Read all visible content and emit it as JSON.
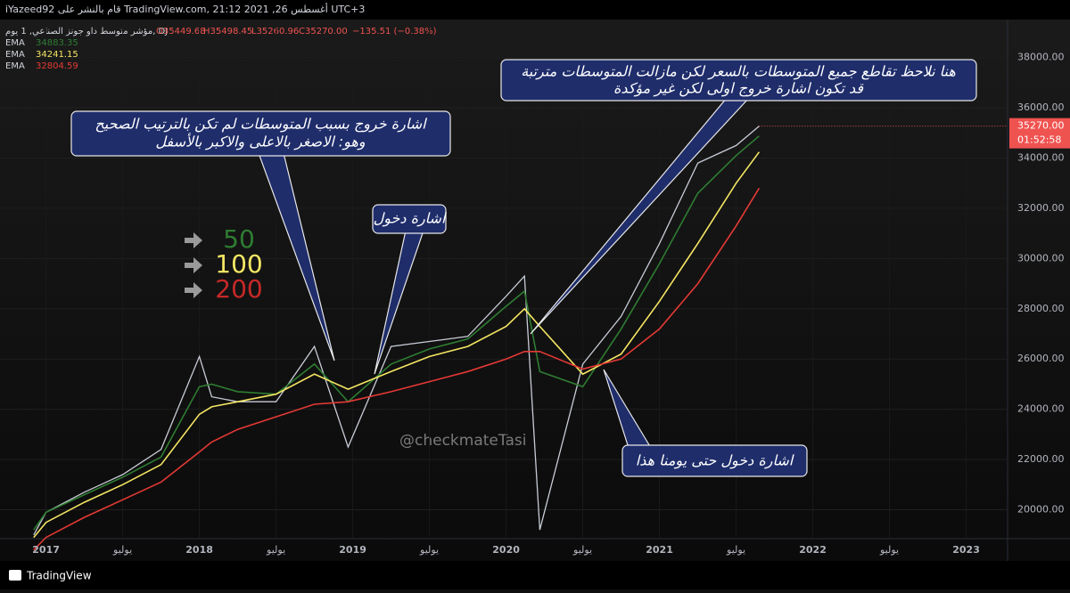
{
  "header": {
    "publisher": "iYazeed92 قام بالنشر على TradingView.com, 21:12 2021 ,26 أغسطس UTC+3",
    "symbol": "مؤشر متوسط داو جونز الصناعي, 1 يوم, DJ",
    "ohlc": [
      "O35449.68",
      "H35498.45",
      "L35260.96",
      "C35270.00",
      "−135.51 (−0.38%)"
    ]
  },
  "chart_data": {
    "type": "line",
    "x": [
      2016.92,
      2017.0,
      2017.25,
      2017.5,
      2017.75,
      2018.0,
      2018.08,
      2018.25,
      2018.5,
      2018.75,
      2018.97,
      2019.25,
      2019.5,
      2019.75,
      2020.0,
      2020.12,
      2020.22,
      2020.5,
      2020.75,
      2021.0,
      2021.25,
      2021.5,
      2021.65
    ],
    "series": [
      {
        "name": "DJ",
        "color": "#c8ccd6",
        "values": [
          19000,
          19900,
          20700,
          21400,
          22400,
          26100,
          24500,
          24300,
          24300,
          26500,
          22500,
          26500,
          26700,
          26900,
          28500,
          29300,
          19200,
          25800,
          27700,
          30600,
          33800,
          34500,
          35270
        ]
      },
      {
        "name": "EMA",
        "color": "#2e7d32",
        "legend_value": "34883.35",
        "values": [
          19200,
          19900,
          20600,
          21300,
          22100,
          24900,
          25000,
          24700,
          24600,
          25800,
          24300,
          25800,
          26400,
          26800,
          28100,
          28700,
          25500,
          24900,
          27200,
          29800,
          32600,
          34100,
          34880
        ]
      },
      {
        "name": "EMA",
        "color": "#f5e663",
        "legend_value": "34241.15",
        "values": [
          18900,
          19500,
          20300,
          21000,
          21800,
          23800,
          24100,
          24300,
          24600,
          25400,
          24800,
          25500,
          26100,
          26500,
          27300,
          28000,
          27300,
          25400,
          26200,
          28300,
          30600,
          33000,
          34240
        ]
      },
      {
        "name": "EMA",
        "color": "#e53935",
        "legend_value": "32804.59",
        "values": [
          18400,
          18900,
          19700,
          20400,
          21100,
          22300,
          22700,
          23200,
          23700,
          24200,
          24300,
          24700,
          25100,
          25500,
          26000,
          26300,
          26300,
          25600,
          26000,
          27200,
          29000,
          31300,
          32800
        ]
      }
    ],
    "xlim": [
      2016.7,
      2023.27
    ],
    "xticks": [
      2017,
      {
        "value": 2017.5,
        "label": "يوليو"
      },
      2018,
      {
        "value": 2018.5,
        "label": "يوليو"
      },
      2019,
      {
        "value": 2019.5,
        "label": "يوليو"
      },
      2020,
      {
        "value": 2020.5,
        "label": "يوليو"
      },
      2021,
      {
        "value": 2021.5,
        "label": "يوليو"
      },
      2022,
      {
        "value": 2022.5,
        "label": "يوليو"
      },
      2023
    ],
    "ylim": [
      18850,
      39510
    ],
    "yticks": [
      {
        "value": 20000,
        "label": "20000.00"
      },
      {
        "value": 22000,
        "label": "22000.00"
      },
      {
        "value": 24000,
        "label": "24000.00"
      },
      {
        "value": 26000,
        "label": "26000.00"
      },
      {
        "value": 28000,
        "label": "28000.00"
      },
      {
        "value": 30000,
        "label": "30000.00"
      },
      {
        "value": 32000,
        "label": "32000.00"
      },
      {
        "value": 34000,
        "label": "34000.00"
      },
      {
        "value": 36000,
        "label": "36000.00"
      },
      {
        "value": 38000,
        "label": "38000.00"
      }
    ],
    "grid": true,
    "last_price": {
      "value": 35270,
      "label": "35270.00"
    },
    "countdown": "01:52:58",
    "ema_key": [
      {
        "label": "50",
        "color": "#2e7d32"
      },
      {
        "label": "100",
        "color": "#f5e663"
      },
      {
        "label": "200",
        "color": "#c62828"
      }
    ]
  },
  "annotations": [
    {
      "lines": [
        "اشارة خروج بسبب المتوسطات لم تكن بالترتيب الصحيح",
        "وهو: الاصغر بالاعلى والاكبر بالأسفل"
      ]
    },
    {
      "lines": [
        "اشارة دخول"
      ]
    },
    {
      "lines": [
        "هنا نلاحظ تقاطع جميع المتوسطات بالسعر لكن مازالت المتوسطات مترتبة",
        "قد تكون اشارة خروج اولى لكن غير مؤكدة"
      ]
    },
    {
      "lines": [
        "اشارة دخول حتى يومنا هذا"
      ]
    }
  ],
  "watermark": "@checkmateTasi",
  "footer": "TradingView"
}
